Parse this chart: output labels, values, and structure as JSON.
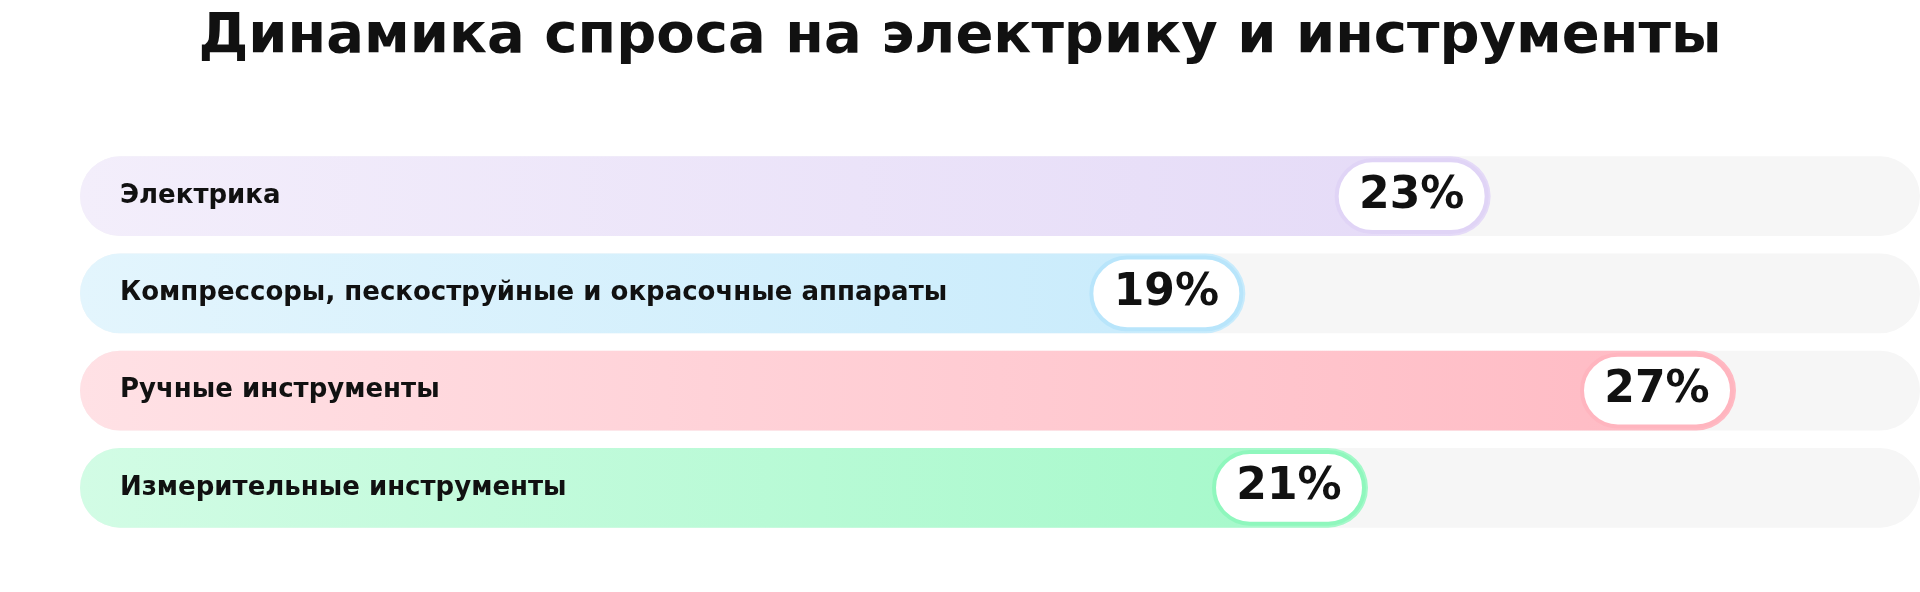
{
  "chart_data": {
    "type": "bar",
    "orientation": "horizontal",
    "title": "Динамика спроса на электрику и инструменты",
    "categories": [
      "Электрика",
      "Компрессоры, пескоструйные и окрасочные аппараты",
      "Ручные инструменты",
      "Измерительные инструменты"
    ],
    "values": [
      23,
      19,
      27,
      21
    ],
    "colors": [
      "#e0d4f6",
      "#b8e5fb",
      "#ffb5bf",
      "#8ff7bd"
    ],
    "value_labels": [
      "23%",
      "19%",
      "27%",
      "21%"
    ],
    "grid": false,
    "legend": false,
    "tick_labels": "y"
  }
}
